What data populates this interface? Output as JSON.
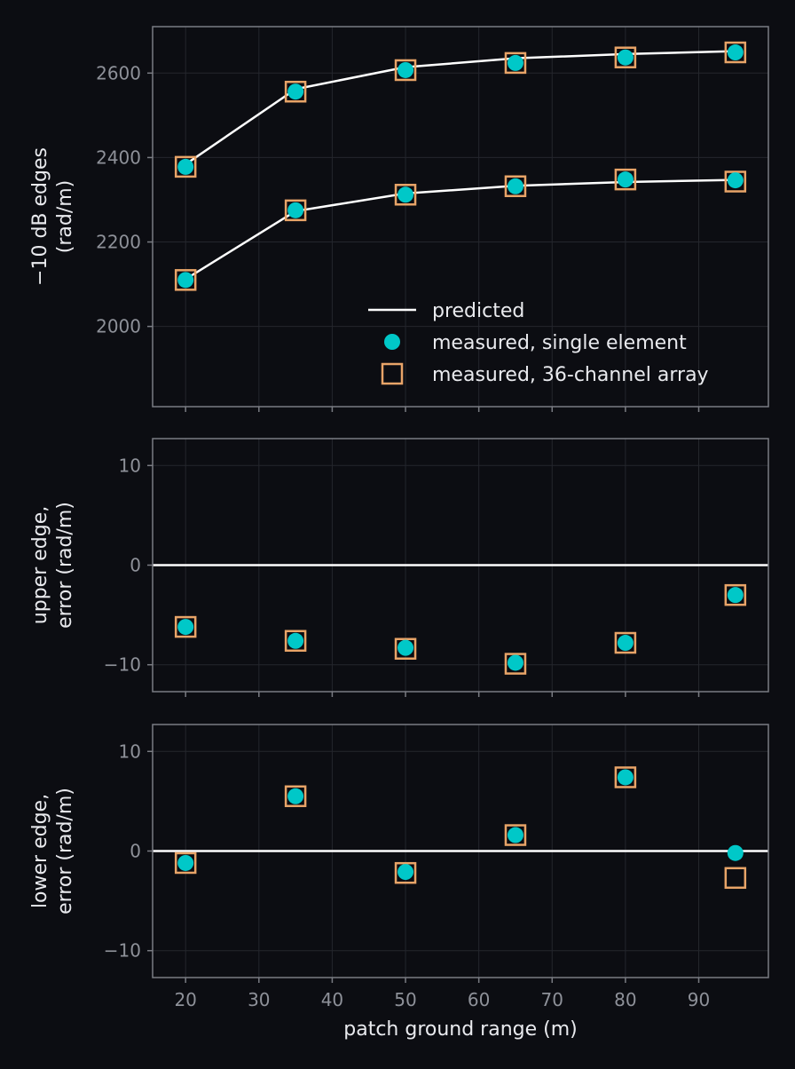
{
  "chart_data": [
    {
      "type": "line",
      "panel": "top",
      "ylabel_lines": [
        "−10 dB edges",
        "(rad/m)"
      ],
      "xlim": [
        15.5,
        99.5
      ],
      "ylim": [
        1810,
        2710
      ],
      "yticks": [
        2000,
        2200,
        2400,
        2600
      ],
      "ytick_labels": [
        "2000",
        "2200",
        "2400",
        "2600"
      ],
      "xticks": [
        20,
        30,
        40,
        50,
        60,
        70,
        80,
        90
      ],
      "grid": true,
      "legend": {
        "placement": "lower-right",
        "entries": [
          "predicted",
          "measured, single element",
          "measured, 36-channel array"
        ]
      },
      "x": [
        20,
        35,
        50,
        65,
        80,
        95
      ],
      "series": [
        {
          "name": "predicted",
          "kind": "line",
          "group": "upper",
          "values": [
            2384,
            2562,
            2614,
            2635,
            2645,
            2652
          ]
        },
        {
          "name": "predicted",
          "kind": "line",
          "group": "lower",
          "values": [
            2112,
            2273,
            2315,
            2333,
            2342,
            2347
          ]
        },
        {
          "name": "measured, single element",
          "kind": "marker",
          "group": "upper",
          "values": [
            2378,
            2556,
            2607,
            2624,
            2637,
            2649
          ]
        },
        {
          "name": "measured, single element",
          "kind": "marker",
          "group": "lower",
          "values": [
            2110,
            2275,
            2312,
            2332,
            2348,
            2346
          ]
        },
        {
          "name": "measured, 36-channel array",
          "kind": "marker",
          "group": "upper",
          "values": [
            2378,
            2556,
            2607,
            2624,
            2637,
            2649
          ]
        },
        {
          "name": "measured, 36-channel array",
          "kind": "marker",
          "group": "lower",
          "values": [
            2110,
            2275,
            2312,
            2332,
            2348,
            2343
          ]
        }
      ]
    },
    {
      "type": "scatter",
      "panel": "middle",
      "ylabel_lines": [
        "upper edge,",
        "error (rad/m)"
      ],
      "xlim": [
        15.5,
        99.5
      ],
      "ylim": [
        -12.7,
        12.7
      ],
      "yticks": [
        -10,
        0,
        10
      ],
      "ytick_labels": [
        "−10",
        "0",
        "10"
      ],
      "xticks": [
        20,
        30,
        40,
        50,
        60,
        70,
        80,
        90
      ],
      "grid": true,
      "zero_line": true,
      "x": [
        20,
        35,
        50,
        65,
        80,
        95
      ],
      "series": [
        {
          "name": "measured, single element",
          "kind": "marker",
          "values": [
            -6.2,
            -7.6,
            -8.3,
            -9.8,
            -7.8,
            -3.0
          ]
        },
        {
          "name": "measured, 36-channel array",
          "kind": "marker",
          "values": [
            -6.2,
            -7.6,
            -8.4,
            -9.9,
            -7.8,
            -3.0
          ]
        }
      ]
    },
    {
      "type": "scatter",
      "panel": "bottom",
      "ylabel_lines": [
        "lower edge,",
        "error (rad/m)"
      ],
      "xlabel": "patch ground range (m)",
      "xlim": [
        15.5,
        99.5
      ],
      "ylim": [
        -12.7,
        12.7
      ],
      "yticks": [
        -10,
        0,
        10
      ],
      "ytick_labels": [
        "−10",
        "0",
        "10"
      ],
      "xticks": [
        20,
        30,
        40,
        50,
        60,
        70,
        80,
        90
      ],
      "xtick_labels": [
        "20",
        "30",
        "40",
        "50",
        "60",
        "70",
        "80",
        "90"
      ],
      "grid": true,
      "zero_line": true,
      "x": [
        20,
        35,
        50,
        65,
        80,
        95
      ],
      "series": [
        {
          "name": "measured, single element",
          "kind": "marker",
          "values": [
            -1.2,
            5.5,
            -2.1,
            1.6,
            7.4,
            -0.2
          ]
        },
        {
          "name": "measured, 36-channel array",
          "kind": "marker",
          "values": [
            -1.2,
            5.5,
            -2.2,
            1.6,
            7.4,
            -2.7
          ]
        }
      ]
    }
  ],
  "colors": {
    "background": "#0c0d12",
    "line": "#ffffff",
    "single_element_marker": "#00c8c8",
    "array_marker": "#e8a468",
    "frame": "#7a7c83",
    "grid": "#24262d",
    "tick_text": "#8e9199",
    "label_text": "#e9eaee"
  }
}
